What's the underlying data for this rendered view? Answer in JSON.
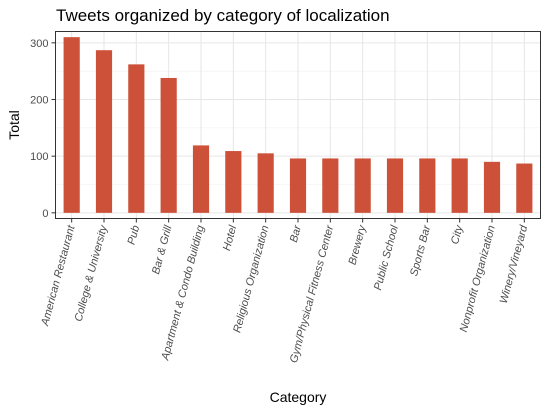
{
  "chart_data": {
    "type": "bar",
    "title": "Tweets organized by category of localization",
    "xlabel": "Category",
    "ylabel": "Total",
    "categories": [
      "American Restaurant",
      "College & University",
      "Pub",
      "Bar & Grill",
      "Apartment & Condo Building",
      "Hotel",
      "Religious Organization",
      "Bar",
      "Gym/Physical Fitness Center",
      "Brewery",
      "Public School",
      "Sports Bar",
      "City",
      "Nonprofit Organization",
      "Winery/Vineyard"
    ],
    "values": [
      310,
      287,
      262,
      238,
      119,
      109,
      105,
      96,
      96,
      96,
      96,
      96,
      96,
      90,
      87
    ],
    "ylim": [
      -10,
      320
    ],
    "yticks": [
      0,
      100,
      200,
      300
    ],
    "grid": true,
    "bar_color": "#cd5038"
  }
}
